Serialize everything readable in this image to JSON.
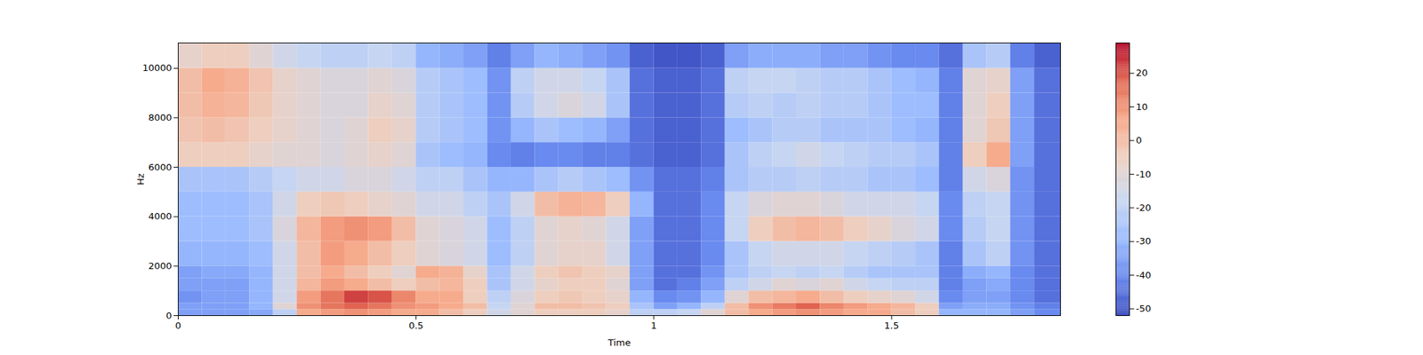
{
  "chart_data": {
    "type": "heatmap",
    "xlabel": "Time",
    "ylabel": "Hz",
    "xlim": [
      0,
      1.855
    ],
    "ylim": [
      0,
      11025
    ],
    "xticks": [
      0,
      0.5,
      1,
      1.5
    ],
    "yticks": [
      0,
      2000,
      4000,
      6000,
      8000,
      10000
    ],
    "x_edges": [
      0,
      0.05,
      0.1,
      0.15,
      0.2,
      0.25,
      0.3,
      0.35,
      0.4,
      0.45,
      0.5,
      0.55,
      0.6,
      0.65,
      0.7,
      0.75,
      0.8,
      0.85,
      0.9,
      0.95,
      1.0,
      1.05,
      1.1,
      1.15,
      1.2,
      1.25,
      1.3,
      1.35,
      1.4,
      1.45,
      1.5,
      1.55,
      1.6,
      1.65,
      1.7,
      1.75,
      1.8,
      1.855
    ],
    "y_edges": [
      0,
      250,
      500,
      1000,
      1500,
      2000,
      3000,
      4000,
      5000,
      6000,
      7000,
      8000,
      9000,
      10000,
      11025
    ],
    "z": [
      [
        -35,
        -35,
        -35,
        -33,
        -20,
        5,
        8,
        10,
        8,
        5,
        5,
        0,
        -5,
        -15,
        -10,
        -5,
        -5,
        -5,
        -8,
        -20,
        -20,
        -18,
        -10,
        0,
        5,
        8,
        10,
        8,
        5,
        5,
        0,
        -5,
        -30,
        -30,
        -30,
        -35,
        -40
      ],
      [
        -35,
        -35,
        -35,
        -30,
        -10,
        10,
        15,
        18,
        15,
        10,
        8,
        5,
        0,
        -18,
        -10,
        0,
        0,
        -2,
        -5,
        -25,
        -35,
        -30,
        -20,
        0,
        10,
        14,
        18,
        12,
        8,
        5,
        2,
        -5,
        -35,
        -32,
        -32,
        -38,
        -42
      ],
      [
        -38,
        -35,
        -35,
        -30,
        -15,
        8,
        15,
        22,
        20,
        12,
        5,
        5,
        -5,
        -20,
        -12,
        -5,
        -3,
        -5,
        -8,
        -30,
        -40,
        -38,
        -30,
        -10,
        0,
        2,
        5,
        0,
        -5,
        -8,
        -10,
        -15,
        -40,
        -35,
        -35,
        -40,
        -45
      ],
      [
        -35,
        -35,
        -35,
        -30,
        -15,
        2,
        8,
        5,
        0,
        -5,
        0,
        2,
        -5,
        -25,
        -15,
        -8,
        -5,
        -5,
        -10,
        -35,
        -45,
        -42,
        -35,
        -20,
        -15,
        -10,
        -12,
        -10,
        -15,
        -18,
        -20,
        -20,
        -42,
        -35,
        -33,
        -40,
        -45
      ],
      [
        -35,
        -33,
        -33,
        -30,
        -15,
        0,
        5,
        0,
        -5,
        -10,
        5,
        3,
        -8,
        -25,
        -15,
        -5,
        -2,
        -5,
        -8,
        -35,
        -45,
        -45,
        -38,
        -25,
        -20,
        -18,
        -20,
        -18,
        -22,
        -25,
        -25,
        -25,
        -42,
        -32,
        -30,
        -40,
        -45
      ],
      [
        -30,
        -30,
        -30,
        -28,
        -15,
        0,
        8,
        5,
        0,
        -5,
        -10,
        -12,
        -15,
        -28,
        -20,
        -10,
        -8,
        -8,
        -15,
        -35,
        -45,
        -45,
        -40,
        -25,
        -18,
        -15,
        -15,
        -15,
        -18,
        -20,
        -22,
        -25,
        -42,
        -25,
        -20,
        -38,
        -45
      ],
      [
        -28,
        -28,
        -28,
        -25,
        -12,
        2,
        8,
        10,
        8,
        0,
        -10,
        -12,
        -15,
        -28,
        -20,
        -10,
        -8,
        -10,
        -15,
        -35,
        -45,
        -45,
        -40,
        -18,
        -5,
        0,
        2,
        0,
        -5,
        -8,
        -12,
        -15,
        -40,
        -22,
        -18,
        -38,
        -45
      ],
      [
        -28,
        -28,
        -28,
        -25,
        -15,
        -5,
        -3,
        -5,
        -8,
        -10,
        -15,
        -15,
        -20,
        -25,
        -15,
        0,
        3,
        2,
        -5,
        -30,
        -45,
        -45,
        -40,
        -18,
        -12,
        -10,
        -10,
        -12,
        -15,
        -15,
        -15,
        -18,
        -40,
        -20,
        -18,
        -38,
        -45
      ],
      [
        -25,
        -25,
        -25,
        -22,
        -18,
        -15,
        -15,
        -12,
        -12,
        -15,
        -20,
        -20,
        -25,
        -30,
        -30,
        -25,
        -22,
        -25,
        -28,
        -38,
        -45,
        -45,
        -42,
        -25,
        -22,
        -22,
        -20,
        -22,
        -22,
        -25,
        -25,
        -28,
        -42,
        -15,
        -12,
        -38,
        -45
      ],
      [
        -5,
        -5,
        -5,
        -8,
        -10,
        -10,
        -12,
        -10,
        -8,
        -10,
        -25,
        -28,
        -30,
        -40,
        -42,
        -40,
        -40,
        -42,
        -42,
        -45,
        -48,
        -48,
        -45,
        -25,
        -20,
        -18,
        -15,
        -18,
        -20,
        -22,
        -22,
        -25,
        -42,
        -5,
        5,
        -35,
        -45
      ],
      [
        -2,
        0,
        -2,
        -5,
        -8,
        -10,
        -12,
        -10,
        -5,
        -8,
        -22,
        -25,
        -28,
        -38,
        -30,
        -25,
        -28,
        -30,
        -35,
        -45,
        -48,
        -48,
        -45,
        -28,
        -25,
        -22,
        -22,
        -25,
        -25,
        -25,
        -28,
        -30,
        -42,
        -10,
        -3,
        -35,
        -45
      ],
      [
        0,
        3,
        2,
        -3,
        -8,
        -10,
        -12,
        -12,
        -8,
        -10,
        -22,
        -25,
        -28,
        -38,
        -22,
        -15,
        -12,
        -15,
        -25,
        -45,
        -48,
        -48,
        -45,
        -22,
        -20,
        -22,
        -20,
        -22,
        -22,
        -25,
        -28,
        -28,
        -42,
        -10,
        -5,
        -35,
        -45
      ],
      [
        0,
        5,
        3,
        -2,
        -8,
        -10,
        -12,
        -12,
        -10,
        -12,
        -22,
        -25,
        -28,
        -38,
        -20,
        -15,
        -15,
        -18,
        -25,
        -45,
        -48,
        -48,
        -45,
        -20,
        -18,
        -18,
        -20,
        -22,
        -22,
        -25,
        -28,
        -30,
        -42,
        -10,
        -8,
        -35,
        -45
      ],
      [
        -8,
        -5,
        -5,
        -10,
        -15,
        -18,
        -20,
        -20,
        -18,
        -20,
        -30,
        -32,
        -35,
        -42,
        -35,
        -30,
        -32,
        -35,
        -38,
        -48,
        -50,
        -50,
        -48,
        -35,
        -32,
        -32,
        -32,
        -35,
        -35,
        -38,
        -40,
        -40,
        -45,
        -25,
        -22,
        -42,
        -48
      ]
    ],
    "colorbar_range": [
      -52,
      29
    ],
    "colorbar_ticks": [
      -50,
      -40,
      -30,
      -20,
      -10,
      0,
      10,
      20
    ]
  }
}
